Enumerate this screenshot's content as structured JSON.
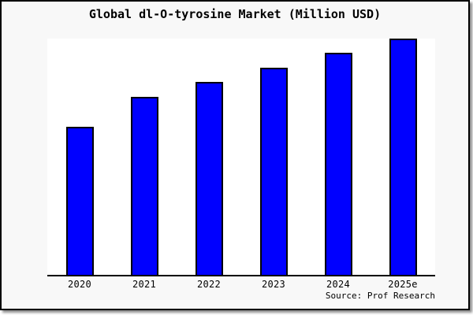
{
  "chart_data": {
    "type": "bar",
    "title": "Global dl-O-tyrosine Market (Million USD)",
    "categories": [
      "2020",
      "2021",
      "2022",
      "2023",
      "2024",
      "2025e"
    ],
    "values": [
      188,
      226,
      245,
      263,
      282,
      300
    ],
    "values_note": "no y-axis labels or gridlines shown; values are bar heights in pixels (relative magnitudes only)",
    "xlabel": "",
    "ylabel": "",
    "ylim": [
      0,
      302
    ],
    "grid": false,
    "legend": "none",
    "y_axis_labels_shown": false,
    "bar_color": "#0000ff",
    "bar_border_color": "#000000",
    "plot_background": "#ffffff",
    "card_background": "#f8f8f8",
    "source_label": "Source: Prof Research"
  }
}
